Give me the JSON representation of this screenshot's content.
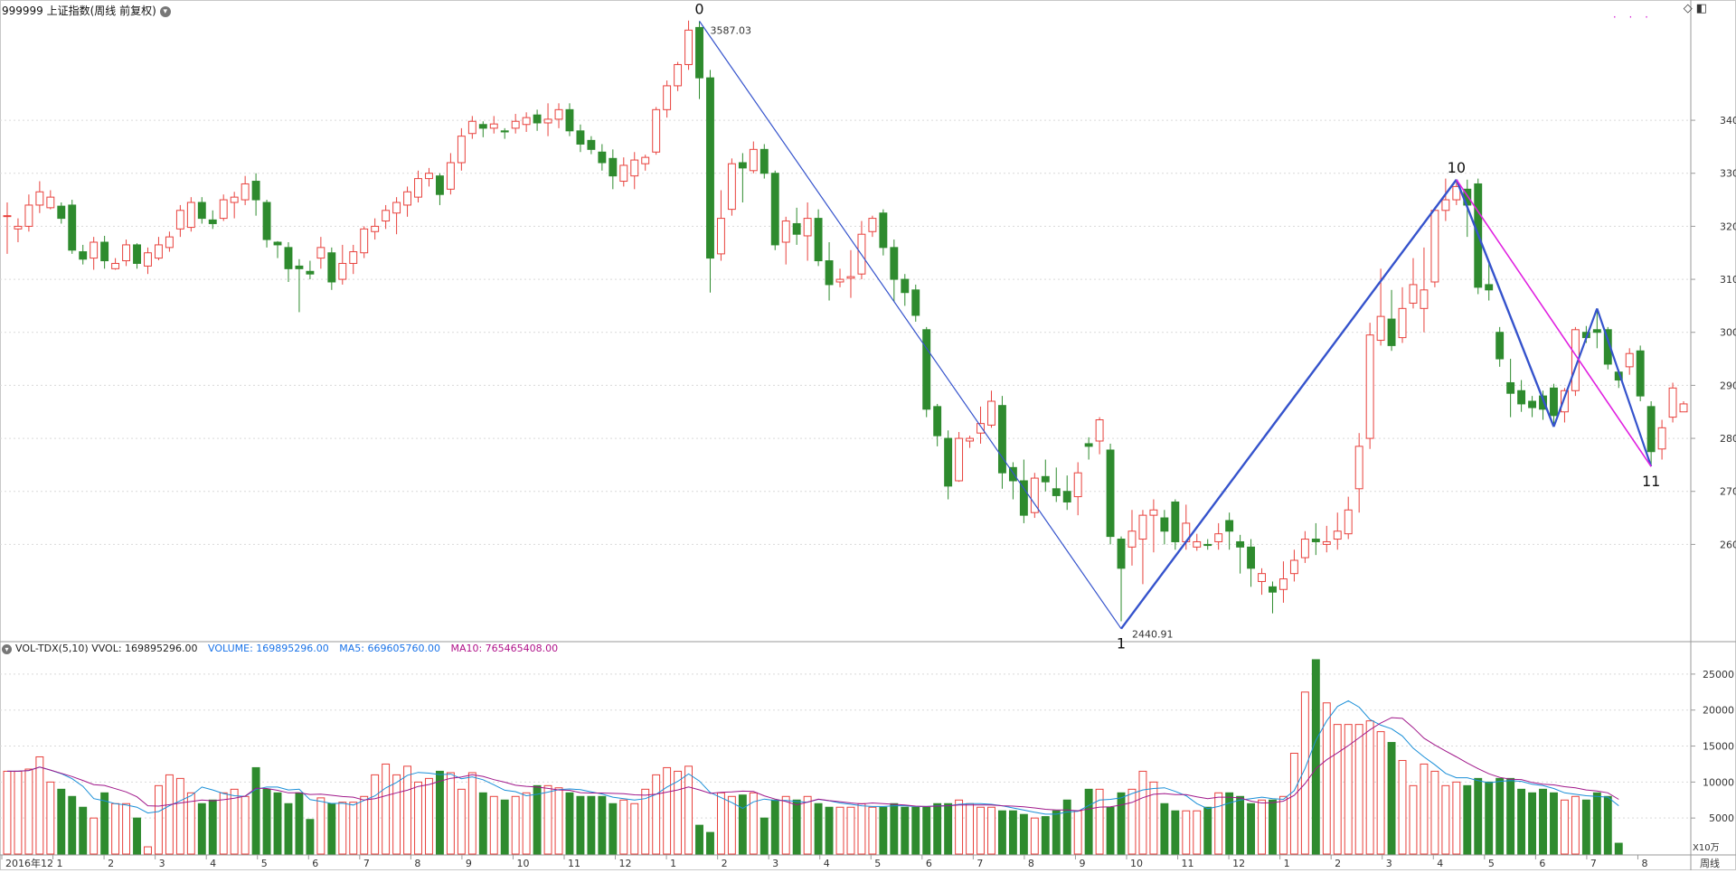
{
  "header": {
    "title": "999999 上证指数(周线 前复权)",
    "icons": [
      "chevron-down-icon",
      "diamond-icon",
      "panel-toggle-icon"
    ]
  },
  "volume_header": {
    "indicator": "VOL-TDX(5,10)",
    "vvol": "VVOL: 169895296.00",
    "volume": "VOLUME: 169895296.00",
    "ma5": "MA5: 669605760.00",
    "ma10": "MA10: 765465408.00"
  },
  "volume_unit": "X10万",
  "period_label": "周线",
  "colors": {
    "up": "#e8413c",
    "down": "#2e8b2e",
    "trend": "#3553cc",
    "magenta": "#e020e0",
    "ma5": "#1a8fd8",
    "ma10": "#a0178a"
  },
  "chart_data": [
    {
      "type": "candlestick",
      "title": "999999 上证指数(周线 前复权)",
      "y_ticks": [
        2600,
        2700,
        2800,
        2900,
        3000,
        3100,
        3200,
        3300,
        3400
      ],
      "ylim": [
        2420,
        3620
      ],
      "x_ticks": [
        "2016年12",
        "1",
        "2",
        "3",
        "4",
        "5",
        "6",
        "7",
        "8",
        "9",
        "10",
        "11",
        "12",
        "1",
        "2",
        "3",
        "4",
        "5",
        "6",
        "7",
        "8",
        "9",
        "10",
        "11",
        "12",
        "1",
        "2",
        "3",
        "4",
        "5",
        "6",
        "7",
        "8"
      ],
      "annotations": [
        {
          "label": "0",
          "price": "3587.03"
        },
        {
          "label": "1",
          "price": "2440.91"
        },
        {
          "label": "10",
          "price": ""
        },
        {
          "label": "11",
          "price": ""
        }
      ],
      "trend_points": [
        {
          "label": "0",
          "value": 3587
        },
        {
          "label": "1",
          "value": 2441
        },
        {
          "label": "10",
          "value": 3288
        },
        {
          "label": "",
          "value": 2822
        },
        {
          "label": "",
          "value": 3045
        },
        {
          "label": "11",
          "value": 2747
        }
      ],
      "candles": [
        [
          3220,
          3220,
          3148,
          3245
        ],
        [
          3195,
          3200,
          3170,
          3215
        ],
        [
          3200,
          3240,
          3190,
          3260
        ],
        [
          3240,
          3265,
          3225,
          3285
        ],
        [
          3235,
          3255,
          3232,
          3268
        ],
        [
          3238,
          3215,
          3205,
          3245
        ],
        [
          3240,
          3155,
          3148,
          3250
        ],
        [
          3152,
          3138,
          3128,
          3165
        ],
        [
          3140,
          3170,
          3118,
          3180
        ],
        [
          3170,
          3135,
          3120,
          3182
        ],
        [
          3120,
          3130,
          3118,
          3140
        ],
        [
          3135,
          3165,
          3125,
          3175
        ],
        [
          3165,
          3130,
          3120,
          3168
        ],
        [
          3125,
          3150,
          3110,
          3160
        ],
        [
          3140,
          3165,
          3136,
          3180
        ],
        [
          3160,
          3180,
          3152,
          3190
        ],
        [
          3195,
          3230,
          3180,
          3240
        ],
        [
          3198,
          3245,
          3190,
          3255
        ],
        [
          3245,
          3215,
          3205,
          3255
        ],
        [
          3212,
          3205,
          3195,
          3230
        ],
        [
          3215,
          3250,
          3210,
          3260
        ],
        [
          3245,
          3255,
          3215,
          3265
        ],
        [
          3250,
          3280,
          3240,
          3295
        ],
        [
          3285,
          3250,
          3220,
          3300
        ],
        [
          3245,
          3175,
          3160,
          3250
        ],
        [
          3170,
          3165,
          3140,
          3172
        ],
        [
          3160,
          3120,
          3095,
          3170
        ],
        [
          3125,
          3120,
          3038,
          3138
        ],
        [
          3115,
          3110,
          3100,
          3135
        ],
        [
          3140,
          3160,
          3120,
          3180
        ],
        [
          3150,
          3095,
          3080,
          3160
        ],
        [
          3100,
          3130,
          3090,
          3165
        ],
        [
          3130,
          3152,
          3110,
          3165
        ],
        [
          3150,
          3195,
          3140,
          3200
        ],
        [
          3190,
          3200,
          3175,
          3215
        ],
        [
          3210,
          3230,
          3195,
          3240
        ],
        [
          3225,
          3245,
          3185,
          3255
        ],
        [
          3240,
          3265,
          3218,
          3275
        ],
        [
          3255,
          3290,
          3245,
          3305
        ],
        [
          3290,
          3300,
          3275,
          3310
        ],
        [
          3295,
          3260,
          3240,
          3300
        ],
        [
          3270,
          3320,
          3260,
          3338
        ],
        [
          3320,
          3370,
          3305,
          3385
        ],
        [
          3375,
          3398,
          3365,
          3408
        ],
        [
          3392,
          3385,
          3368,
          3398
        ],
        [
          3385,
          3393,
          3375,
          3408
        ],
        [
          3380,
          3378,
          3365,
          3385
        ],
        [
          3385,
          3398,
          3375,
          3412
        ],
        [
          3392,
          3405,
          3378,
          3415
        ],
        [
          3410,
          3395,
          3380,
          3420
        ],
        [
          3395,
          3402,
          3370,
          3432
        ],
        [
          3402,
          3420,
          3385,
          3432
        ],
        [
          3420,
          3380,
          3370,
          3432
        ],
        [
          3380,
          3355,
          3340,
          3392
        ],
        [
          3362,
          3345,
          3336,
          3370
        ],
        [
          3340,
          3320,
          3305,
          3355
        ],
        [
          3328,
          3295,
          3270,
          3345
        ],
        [
          3285,
          3315,
          3275,
          3330
        ],
        [
          3295,
          3325,
          3270,
          3340
        ],
        [
          3318,
          3330,
          3305,
          3335
        ],
        [
          3340,
          3420,
          3335,
          3425
        ],
        [
          3420,
          3465,
          3405,
          3475
        ],
        [
          3465,
          3505,
          3455,
          3510
        ],
        [
          3505,
          3570,
          3495,
          3588
        ],
        [
          3575,
          3480,
          3440,
          3587
        ],
        [
          3480,
          3140,
          3075,
          3495
        ],
        [
          3148,
          3215,
          3135,
          3268
        ],
        [
          3232,
          3318,
          3220,
          3328
        ],
        [
          3320,
          3310,
          3245,
          3338
        ],
        [
          3305,
          3345,
          3300,
          3360
        ],
        [
          3345,
          3300,
          3290,
          3355
        ],
        [
          3300,
          3165,
          3155,
          3305
        ],
        [
          3170,
          3210,
          3128,
          3218
        ],
        [
          3205,
          3185,
          3165,
          3235
        ],
        [
          3182,
          3215,
          3135,
          3245
        ],
        [
          3215,
          3135,
          3125,
          3232
        ],
        [
          3135,
          3090,
          3060,
          3170
        ],
        [
          3095,
          3100,
          3085,
          3120
        ],
        [
          3102,
          3105,
          3065,
          3155
        ],
        [
          3110,
          3185,
          3100,
          3210
        ],
        [
          3190,
          3215,
          3180,
          3220
        ],
        [
          3225,
          3160,
          3145,
          3232
        ],
        [
          3160,
          3100,
          3058,
          3175
        ],
        [
          3100,
          3075,
          3050,
          3110
        ],
        [
          3080,
          3032,
          3020,
          3090
        ],
        [
          3005,
          2855,
          2840,
          3010
        ],
        [
          2860,
          2805,
          2785,
          2865
        ],
        [
          2800,
          2710,
          2685,
          2815
        ],
        [
          2720,
          2800,
          2718,
          2812
        ],
        [
          2795,
          2800,
          2782,
          2805
        ],
        [
          2810,
          2828,
          2790,
          2860
        ],
        [
          2825,
          2870,
          2820,
          2890
        ],
        [
          2862,
          2735,
          2705,
          2880
        ],
        [
          2745,
          2720,
          2685,
          2755
        ],
        [
          2720,
          2655,
          2640,
          2760
        ],
        [
          2660,
          2725,
          2650,
          2735
        ],
        [
          2728,
          2718,
          2700,
          2760
        ],
        [
          2705,
          2692,
          2680,
          2745
        ],
        [
          2700,
          2680,
          2665,
          2730
        ],
        [
          2690,
          2735,
          2655,
          2755
        ],
        [
          2790,
          2785,
          2760,
          2802
        ],
        [
          2795,
          2835,
          2770,
          2840
        ],
        [
          2778,
          2615,
          2600,
          2790
        ],
        [
          2610,
          2555,
          2455,
          2615
        ],
        [
          2595,
          2625,
          2560,
          2665
        ],
        [
          2610,
          2655,
          2525,
          2665
        ],
        [
          2655,
          2665,
          2585,
          2685
        ],
        [
          2650,
          2625,
          2600,
          2665
        ],
        [
          2680,
          2605,
          2590,
          2685
        ],
        [
          2605,
          2640,
          2590,
          2675
        ],
        [
          2595,
          2605,
          2588,
          2620
        ],
        [
          2600,
          2598,
          2590,
          2610
        ],
        [
          2605,
          2620,
          2590,
          2640
        ],
        [
          2645,
          2625,
          2590,
          2660
        ],
        [
          2605,
          2595,
          2545,
          2618
        ],
        [
          2595,
          2555,
          2520,
          2610
        ],
        [
          2530,
          2545,
          2505,
          2555
        ],
        [
          2520,
          2510,
          2470,
          2530
        ],
        [
          2515,
          2535,
          2490,
          2568
        ],
        [
          2545,
          2570,
          2530,
          2590
        ],
        [
          2575,
          2610,
          2565,
          2625
        ],
        [
          2610,
          2605,
          2580,
          2640
        ],
        [
          2600,
          2605,
          2585,
          2635
        ],
        [
          2610,
          2625,
          2590,
          2660
        ],
        [
          2620,
          2665,
          2610,
          2690
        ],
        [
          2705,
          2785,
          2660,
          2810
        ],
        [
          2800,
          2995,
          2780,
          3018
        ],
        [
          2985,
          3030,
          2975,
          3120
        ],
        [
          3025,
          2975,
          2965,
          3080
        ],
        [
          2990,
          3045,
          2980,
          3085
        ],
        [
          3055,
          3090,
          3045,
          3140
        ],
        [
          3045,
          3080,
          3000,
          3160
        ],
        [
          3095,
          3230,
          3085,
          3235
        ],
        [
          3230,
          3250,
          3210,
          3290
        ],
        [
          3250,
          3275,
          3240,
          3288
        ],
        [
          3270,
          3240,
          3180,
          3288
        ],
        [
          3280,
          3085,
          3072,
          3290
        ],
        [
          3090,
          3080,
          3060,
          3135
        ],
        [
          3000,
          2950,
          2935,
          3010
        ],
        [
          2905,
          2885,
          2840,
          2950
        ],
        [
          2890,
          2865,
          2850,
          2910
        ],
        [
          2870,
          2858,
          2840,
          2880
        ],
        [
          2880,
          2855,
          2835,
          2890
        ],
        [
          2895,
          2843,
          2822,
          2903
        ],
        [
          2850,
          2890,
          2830,
          2895
        ],
        [
          2890,
          3005,
          2880,
          3010
        ],
        [
          3000,
          2990,
          2980,
          3012
        ],
        [
          3005,
          3000,
          2970,
          3045
        ],
        [
          3005,
          2940,
          2930,
          3010
        ],
        [
          2925,
          2910,
          2895,
          2930
        ],
        [
          2935,
          2960,
          2920,
          2970
        ],
        [
          2965,
          2880,
          2870,
          2975
        ],
        [
          2860,
          2775,
          2750,
          2870
        ],
        [
          2780,
          2820,
          2760,
          2835
        ],
        [
          2840,
          2895,
          2830,
          2905
        ],
        [
          2850,
          2865,
          2850,
          2870
        ]
      ]
    },
    {
      "type": "bar",
      "title": "VOL-TDX(5,10)",
      "y_ticks": [
        5000,
        10000,
        15000,
        20000,
        25000
      ],
      "ylim": [
        0,
        28000
      ],
      "values": [
        11500,
        11500,
        11800,
        13500,
        10000,
        9000,
        8000,
        6500,
        5000,
        8500,
        7000,
        7000,
        5000,
        1000,
        9500,
        11000,
        10500,
        8500,
        7000,
        7500,
        8500,
        9000,
        8000,
        12000,
        9000,
        8500,
        7000,
        8500,
        4800,
        7800,
        7000,
        7200,
        7200,
        8000,
        11000,
        12500,
        11000,
        12200,
        10000,
        10500,
        11500,
        11300,
        9000,
        11300,
        8500,
        8000,
        7500,
        8000,
        8500,
        9500,
        9500,
        9200,
        8500,
        8000,
        8000,
        8000,
        7000,
        7500,
        7000,
        9000,
        11000,
        12000,
        11500,
        12200,
        4000,
        3000,
        8500,
        8000,
        8200,
        8500,
        5000,
        7500,
        8000,
        7500,
        8000,
        7000,
        6500,
        6500,
        6500,
        7000,
        6500,
        6500,
        7000,
        6500,
        6500,
        6500,
        7000,
        7000,
        7500,
        7000,
        6500,
        6500,
        6000,
        6000,
        5500,
        5000,
        5200,
        6000,
        7500,
        6000,
        9000,
        9000,
        6500,
        8500,
        9000,
        11500,
        10000,
        7000,
        6000,
        6000,
        6000,
        6500,
        8500,
        8500,
        8000,
        7000,
        7500,
        7500,
        8000,
        14000,
        22500,
        27000,
        21000,
        18000,
        18000,
        18000,
        18500,
        17000,
        15500,
        13000,
        9500,
        12500,
        11500,
        9500,
        10000,
        9500,
        10500,
        10000,
        10500,
        10500,
        9000,
        8500,
        9000,
        8500,
        7500,
        8000,
        7500,
        8500,
        8000,
        1500
      ],
      "series": [
        {
          "name": "MA5",
          "values": []
        },
        {
          "name": "MA10",
          "values": []
        }
      ]
    }
  ]
}
